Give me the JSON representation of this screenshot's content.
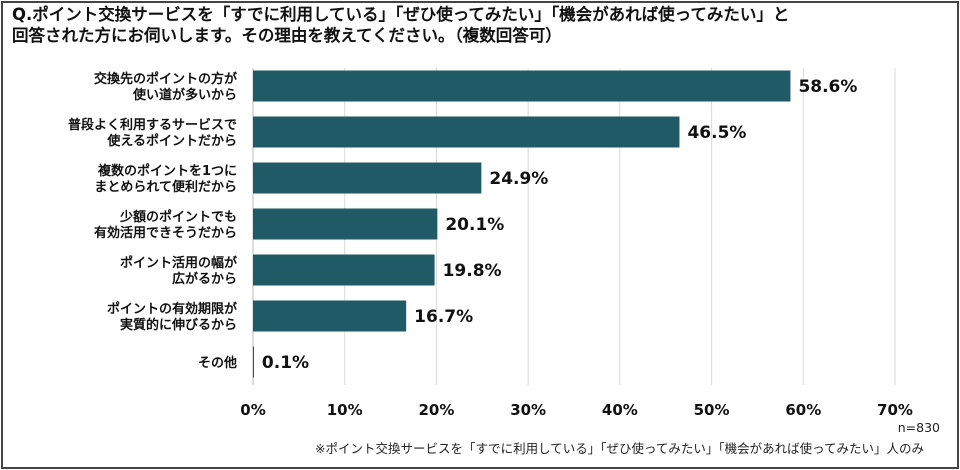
{
  "chart_data": {
    "type": "bar",
    "orientation": "horizontal",
    "title": "Q.ポイント交換サービスを「すでに利用している」「ぜひ使ってみたい」「機会があれば使ってみたい」と\n回答された方にお伺いします。その理由を教えてください。（複数回答可）",
    "categories": [
      [
        "交換先のポイントの方が",
        "使い道が多いから"
      ],
      [
        "普段よく利用するサービスで",
        "使えるポイントだから"
      ],
      [
        "複数のポイントを1つに",
        "まとめられて便利だから"
      ],
      [
        "少額のポイントでも",
        "有効活用できそうだから"
      ],
      [
        "ポイント活用の幅が",
        "広がるから"
      ],
      [
        "ポイントの有効期限が",
        "実質的に伸びるから"
      ],
      [
        "その他"
      ]
    ],
    "values": [
      58.6,
      46.5,
      24.9,
      20.1,
      19.8,
      16.7,
      0.1
    ],
    "value_labels": [
      "58.6%",
      "46.5%",
      "24.9%",
      "20.1%",
      "19.8%",
      "16.7%",
      "0.1%"
    ],
    "xlim": [
      0,
      70
    ],
    "xticks": [
      0,
      10,
      20,
      30,
      40,
      50,
      60,
      70
    ],
    "xtick_labels": [
      "0%",
      "10%",
      "20%",
      "30%",
      "40%",
      "50%",
      "60%",
      "70%"
    ],
    "grid": true,
    "bar_color": "#1f5a66",
    "sample_size": "n=830",
    "footnote": "※ポイント交換サービスを「すでに利用している」「ぜひ使ってみたい」「機会があれば使ってみたい」人のみ"
  }
}
